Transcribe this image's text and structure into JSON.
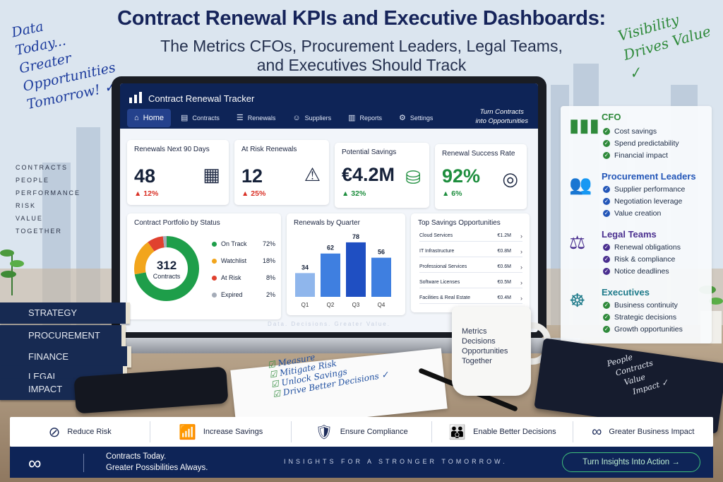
{
  "header": {
    "title": "Contract Renewal KPIs and Executive Dashboards:",
    "subtitle_line1": "The Metrics CFOs, Procurement Leaders, Legal Teams,",
    "subtitle_line2": "and Executives Should Track"
  },
  "left_note": {
    "lines": [
      "Data",
      "Today...",
      "Greater",
      "Opportunities",
      "Tomorrow! ✓"
    ]
  },
  "left_words": [
    "CONTRACTS",
    "PEOPLE",
    "PERFORMANCE",
    "RISK",
    "VALUE",
    "TOGETHER"
  ],
  "right_note": {
    "line1": "Visibility",
    "line2": "Drives Value ✓"
  },
  "app": {
    "title": "Contract Renewal Tracker",
    "tagline_line1": "Turn Contracts",
    "tagline_line2": "into Opportunities",
    "nav": [
      {
        "label": "Home",
        "icon": "home-icon",
        "active": true
      },
      {
        "label": "Contracts",
        "icon": "document-icon"
      },
      {
        "label": "Renewals",
        "icon": "list-icon"
      },
      {
        "label": "Suppliers",
        "icon": "users-icon"
      },
      {
        "label": "Reports",
        "icon": "report-icon"
      },
      {
        "label": "Settings",
        "icon": "gear-icon"
      }
    ],
    "kpis": [
      {
        "label": "Renewals Next 90 Days",
        "value": "48",
        "delta": "▲ 12%",
        "icon": "calendar-icon"
      },
      {
        "label": "At Risk Renewals",
        "value": "12",
        "delta": "▲ 25%",
        "icon": "warning-icon"
      },
      {
        "label": "Potential Savings",
        "value": "€4.2M",
        "delta": "▲ 32%",
        "icon": "coins-icon"
      },
      {
        "label": "Renewal Success Rate",
        "value": "92%",
        "delta": "▲ 6%",
        "icon": "target-icon"
      }
    ],
    "portfolio": {
      "title": "Contract Portfolio by Status",
      "center_value": "312",
      "center_label": "Contracts",
      "status": [
        {
          "label": "On Track",
          "pct": "72%",
          "value": 72,
          "color": "#1e9e4a"
        },
        {
          "label": "Watchlist",
          "pct": "18%",
          "value": 18,
          "color": "#f2a51c"
        },
        {
          "label": "At Risk",
          "pct": "8%",
          "value": 8,
          "color": "#e0412f"
        },
        {
          "label": "Expired",
          "pct": "2%",
          "value": 2,
          "color": "#a5acb8"
        }
      ]
    },
    "savings": {
      "title": "Top Savings Opportunities",
      "rows": [
        {
          "name": "Cloud Services",
          "amount": "€1.2M"
        },
        {
          "name": "IT Infrastructure",
          "amount": "€0.8M"
        },
        {
          "name": "Professional Services",
          "amount": "€0.6M"
        },
        {
          "name": "Software Licenses",
          "amount": "€0.5M"
        },
        {
          "name": "Facilities & Real Estate",
          "amount": "€0.4M"
        }
      ]
    },
    "footer_text": "Data. Decisions. Greater Value."
  },
  "chart_data": {
    "type": "bar",
    "title": "Renewals by Quarter",
    "categories": [
      "Q1",
      "Q2",
      "Q3",
      "Q4"
    ],
    "values": [
      34,
      62,
      78,
      56
    ],
    "ylim": [
      0,
      85
    ],
    "grid": false
  },
  "roles": [
    {
      "title": "CFO",
      "color": "#2f8a3b",
      "icon": "bar-chart-icon",
      "items": [
        "Cost savings",
        "Spend predictability",
        "Financial impact"
      ]
    },
    {
      "title": "Procurement Leaders",
      "color": "#2356b8",
      "icon": "people-icon",
      "items": [
        "Supplier performance",
        "Negotiation leverage",
        "Value creation"
      ]
    },
    {
      "title": "Legal Teams",
      "color": "#4a2f8f",
      "icon": "scales-icon",
      "items": [
        "Renewal obligations",
        "Risk & compliance",
        "Notice deadlines"
      ]
    },
    {
      "title": "Executives",
      "color": "#1e7a8a",
      "icon": "group-icon",
      "items": [
        "Business continuity",
        "Strategic decisions",
        "Growth opportunities"
      ]
    }
  ],
  "books": [
    "STRATEGY",
    "PROCUREMENT",
    "FINANCE",
    "LEGAL",
    "IMPACT"
  ],
  "checklist": [
    "Measure",
    "Mitigate Risk",
    "Unlock Savings",
    "Drive Better Decisions ✓"
  ],
  "mug": [
    "Metrics",
    "Decisions",
    "Opportunities",
    "Together"
  ],
  "notebook": [
    "People",
    "Contracts",
    "Value",
    "Impact ✓"
  ],
  "benefits": [
    {
      "label": "Reduce Risk",
      "icon": "compass-icon"
    },
    {
      "label": "Increase Savings",
      "icon": "growth-chart-icon"
    },
    {
      "label": "Ensure Compliance",
      "icon": "shield-check-icon"
    },
    {
      "label": "Enable Better Decisions",
      "icon": "team-icon"
    },
    {
      "label": "Greater Business Impact",
      "icon": "infinity-icon"
    }
  ],
  "footer": {
    "line1": "Contracts Today.",
    "line2": "Greater Possibilities Always.",
    "middle": "INSIGHTS FOR A STRONGER TOMORROW.",
    "button": "Turn Insights Into Action →"
  }
}
